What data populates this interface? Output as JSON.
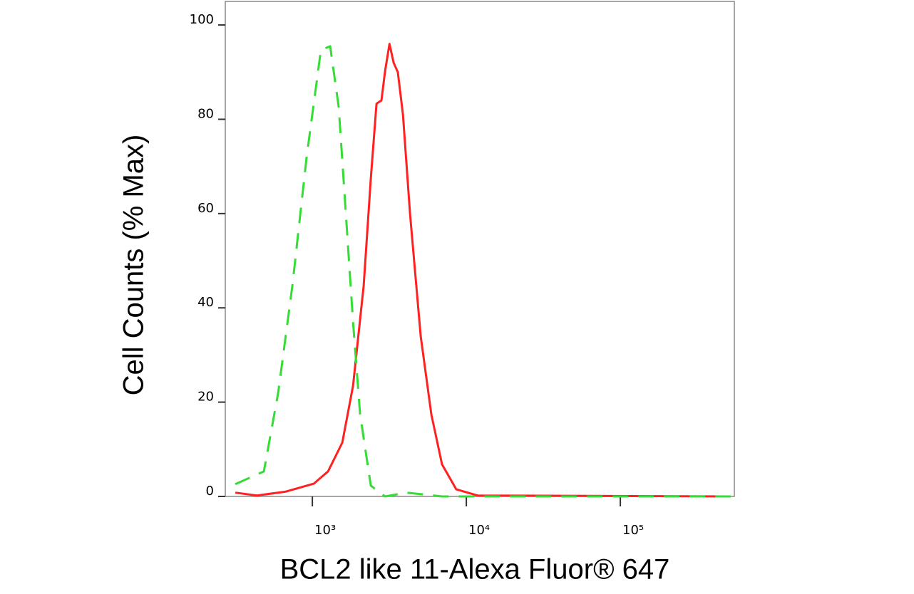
{
  "chart_data": {
    "type": "line",
    "x_label": "BCL2 like 11-Alexa Fluor® 647",
    "y_label": "Cell Counts (% Max)",
    "xscale": "log",
    "xlim": [
      272,
      550000
    ],
    "ylim": [
      0,
      105
    ],
    "xticks": [
      {
        "value": 1000,
        "label": "10³"
      },
      {
        "value": 10000,
        "label": "10⁴"
      },
      {
        "value": 100000,
        "label": "10⁵"
      }
    ],
    "yticks": [
      0,
      20,
      40,
      60,
      80,
      100
    ],
    "series": [
      {
        "color": "#ff2020",
        "dashed": false,
        "x": [
          316,
          436,
          667,
          1021,
          1264,
          1565,
          1837,
          2153,
          2397,
          2610,
          2810,
          2966,
          3167,
          3370,
          3591,
          3874,
          4305,
          5054,
          5926,
          6950,
          8600,
          11840,
          521000
        ],
        "values": [
          0.8,
          0.2,
          1,
          2.7,
          5.3,
          11.4,
          23.5,
          44.7,
          67.4,
          83.3,
          84,
          90.2,
          96,
          92,
          90,
          81,
          60,
          34,
          17.4,
          6.8,
          1.5,
          0.2,
          0
        ]
      },
      {
        "color": "#33dd33",
        "dashed": true,
        "x": [
          316,
          484,
          600,
          742,
          918,
          1136,
          1305,
          1483,
          1650,
          1837,
          2042,
          2397,
          2966,
          4081,
          6950,
          521000
        ],
        "values": [
          2.6,
          5.3,
          22,
          44.7,
          72,
          94.7,
          95.5,
          82.6,
          60,
          37,
          17.4,
          2.3,
          0,
          0.8,
          0,
          0
        ]
      }
    ]
  }
}
